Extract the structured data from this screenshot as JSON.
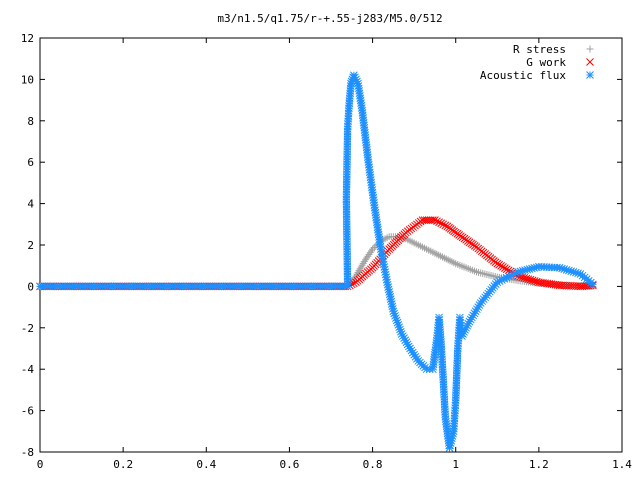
{
  "chart_data": {
    "type": "scatter",
    "title": "m3/n1.5/q1.75/r-+.55-j283/M5.0/512",
    "xlabel": "",
    "ylabel": "",
    "xlim": [
      0,
      1.4
    ],
    "ylim": [
      -8,
      12
    ],
    "x_ticks": [
      "0",
      "0.2",
      "0.4",
      "0.6",
      "0.8",
      "1",
      "1.2",
      "1.4"
    ],
    "y_ticks": [
      "-8",
      "-6",
      "-4",
      "-2",
      "0",
      "2",
      "4",
      "6",
      "8",
      "10",
      "12"
    ],
    "legend_position": "top-right",
    "series": [
      {
        "name": "R stress",
        "marker": "plus",
        "color": "#a0a0a0",
        "points": [
          [
            0,
            0
          ],
          [
            0.74,
            0
          ],
          [
            0.76,
            0.5
          ],
          [
            0.78,
            1.2
          ],
          [
            0.8,
            1.8
          ],
          [
            0.82,
            2.2
          ],
          [
            0.84,
            2.4
          ],
          [
            0.86,
            2.4
          ],
          [
            0.88,
            2.3
          ],
          [
            0.9,
            2.1
          ],
          [
            0.92,
            1.9
          ],
          [
            0.95,
            1.6
          ],
          [
            1.0,
            1.1
          ],
          [
            1.05,
            0.7
          ],
          [
            1.1,
            0.45
          ],
          [
            1.15,
            0.28
          ],
          [
            1.2,
            0.15
          ],
          [
            1.25,
            0.08
          ],
          [
            1.3,
            0.03
          ],
          [
            1.33,
            0.01
          ]
        ]
      },
      {
        "name": "G work",
        "marker": "cross",
        "color": "#ff0000",
        "points": [
          [
            0,
            0
          ],
          [
            0.74,
            0
          ],
          [
            0.76,
            0.2
          ],
          [
            0.8,
            0.9
          ],
          [
            0.84,
            1.8
          ],
          [
            0.88,
            2.6
          ],
          [
            0.92,
            3.2
          ],
          [
            0.95,
            3.2
          ],
          [
            0.98,
            2.9
          ],
          [
            1.0,
            2.6
          ],
          [
            1.05,
            1.9
          ],
          [
            1.1,
            1.1
          ],
          [
            1.15,
            0.5
          ],
          [
            1.2,
            0.2
          ],
          [
            1.25,
            0.05
          ],
          [
            1.3,
            0.0
          ],
          [
            1.33,
            0.05
          ]
        ]
      },
      {
        "name": "Acoustic flux",
        "marker": "star",
        "color": "#1e90ff",
        "points": [
          [
            0,
            0
          ],
          [
            0.74,
            0
          ],
          [
            0.737,
            4.2
          ],
          [
            0.74,
            7.6
          ],
          [
            0.743,
            8.6
          ],
          [
            0.748,
            9.8
          ],
          [
            0.755,
            10.2
          ],
          [
            0.765,
            9.8
          ],
          [
            0.775,
            8.5
          ],
          [
            0.79,
            6.0
          ],
          [
            0.805,
            3.8
          ],
          [
            0.82,
            1.8
          ],
          [
            0.835,
            0.2
          ],
          [
            0.85,
            -1.2
          ],
          [
            0.87,
            -2.3
          ],
          [
            0.89,
            -3.0
          ],
          [
            0.91,
            -3.6
          ],
          [
            0.93,
            -4.0
          ],
          [
            0.945,
            -4.0
          ],
          [
            0.955,
            -2.5
          ],
          [
            0.96,
            -1.5
          ],
          [
            0.965,
            -2.8
          ],
          [
            0.97,
            -4.5
          ],
          [
            0.975,
            -6.3
          ],
          [
            0.985,
            -7.8
          ],
          [
            0.995,
            -7.0
          ],
          [
            1.0,
            -5.5
          ],
          [
            1.005,
            -3.0
          ],
          [
            1.01,
            -1.5
          ],
          [
            1.015,
            -2.4
          ],
          [
            1.03,
            -1.8
          ],
          [
            1.06,
            -0.8
          ],
          [
            1.1,
            0.2
          ],
          [
            1.15,
            0.7
          ],
          [
            1.2,
            0.95
          ],
          [
            1.25,
            0.9
          ],
          [
            1.3,
            0.6
          ],
          [
            1.33,
            0.1
          ]
        ]
      }
    ]
  }
}
